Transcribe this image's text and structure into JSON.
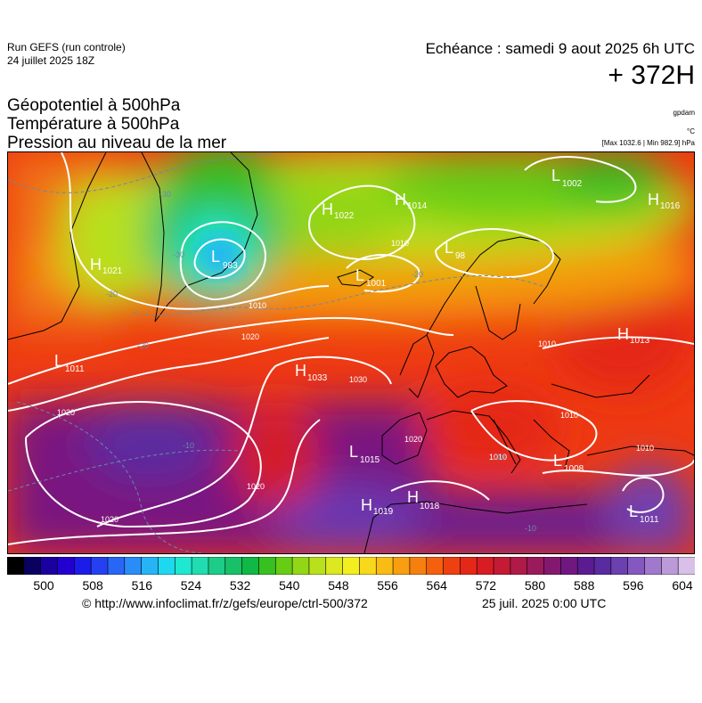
{
  "header": {
    "run_line1": "Run GEFS (run controle)",
    "run_line2": "24 juillet 2025 18Z",
    "echeance": "Echéance : samedi 9 aout 2025 6h UTC",
    "lead": "+ 372H"
  },
  "fields": {
    "line1": "Géopotentiel à 500hPa",
    "line2": "Température à 500hPa",
    "line3": "Pression au niveau de la mer",
    "unit1": "gpdam",
    "unit2": "°C",
    "unit3": "[Max 1032.6 | Min 982.9] hPa"
  },
  "map": {
    "pressure_centers": [
      {
        "type": "L",
        "value": "983",
        "id": "low-983"
      },
      {
        "type": "L",
        "value": "1002",
        "id": "low-1002"
      },
      {
        "type": "L",
        "value": "1001",
        "id": "low-1001"
      },
      {
        "type": "L",
        "value": "1011",
        "id": "low-1011"
      },
      {
        "type": "L",
        "value": "1015",
        "id": "low-1015"
      },
      {
        "type": "L",
        "value": "1008",
        "id": "low-1008"
      },
      {
        "type": "L",
        "value": "1011",
        "id": "low-1011b"
      },
      {
        "type": "L",
        "value": "98",
        "id": "low-98"
      },
      {
        "type": "H",
        "value": "1021",
        "id": "high-1021"
      },
      {
        "type": "H",
        "value": "1022",
        "id": "high-1022"
      },
      {
        "type": "H",
        "value": "1014",
        "id": "high-1014"
      },
      {
        "type": "H",
        "value": "1016",
        "id": "high-1016"
      },
      {
        "type": "H",
        "value": "1013",
        "id": "high-1013"
      },
      {
        "type": "H",
        "value": "1033",
        "id": "high-1033"
      },
      {
        "type": "H",
        "value": "1019",
        "id": "high-1019"
      },
      {
        "type": "H",
        "value": "1018",
        "id": "high-1018"
      }
    ],
    "isobar_labels": [
      "1010",
      "1020",
      "1030",
      "1020",
      "1020",
      "1020",
      "1010",
      "1010",
      "1010",
      "1020",
      "1010",
      "1010"
    ],
    "temp_labels": [
      "-30",
      "-30",
      "-20",
      "-20",
      "-20",
      "-10",
      "-10",
      "-10"
    ]
  },
  "colorbar": {
    "colors": [
      "#000000",
      "#0a0060",
      "#1b00a0",
      "#2400d0",
      "#1c1ce8",
      "#2540f0",
      "#2866f5",
      "#2a8cf7",
      "#26b4f5",
      "#1ed8ef",
      "#1ee8d0",
      "#20dcb0",
      "#1ccc88",
      "#18c068",
      "#10b846",
      "#38c020",
      "#66cc14",
      "#92d618",
      "#b8e01c",
      "#dce820",
      "#f2ee20",
      "#f8d81a",
      "#f8bc14",
      "#f89e10",
      "#f6800e",
      "#f4600e",
      "#ee4010",
      "#e42818",
      "#d81c24",
      "#c41a34",
      "#b01a48",
      "#9a1a5c",
      "#84186e",
      "#701880",
      "#5a1c90",
      "#5a2aa0",
      "#6c40b0",
      "#8458c0",
      "#a078cc",
      "#bc9ad8",
      "#d8c0e8"
    ],
    "ticks": [
      "500",
      "508",
      "516",
      "524",
      "532",
      "540",
      "548",
      "556",
      "564",
      "572",
      "580",
      "588",
      "596",
      "604"
    ]
  },
  "footer": {
    "credit": "© http://www.infoclimat.fr/z/gefs/europe/ctrl-500/372",
    "date": "25 juil. 2025  0:00 UTC"
  }
}
